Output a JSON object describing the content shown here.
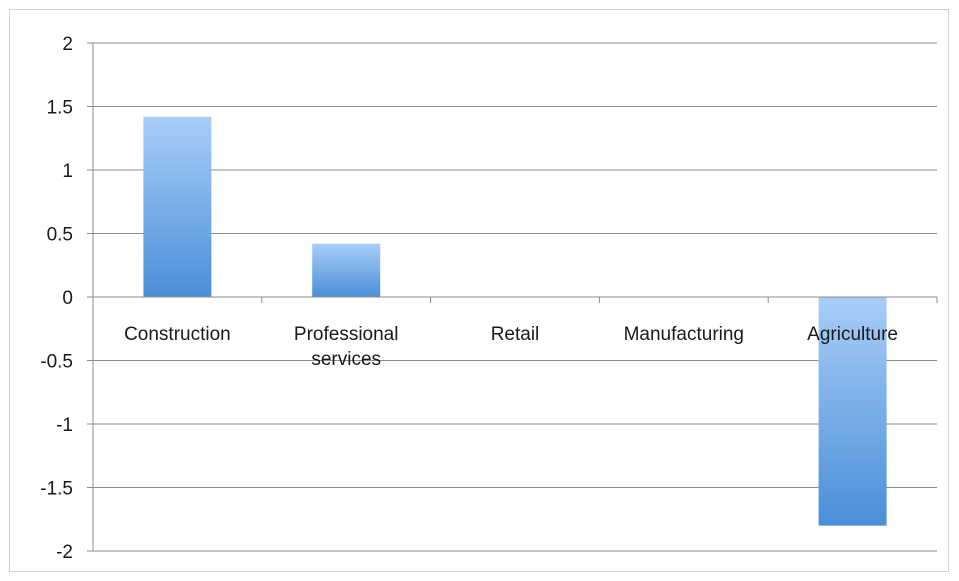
{
  "chart_data": {
    "type": "bar",
    "categories": [
      "Construction",
      [
        "Professional",
        "services"
      ],
      "Retail",
      "Manufacturing",
      "Agriculture"
    ],
    "values": [
      1.42,
      0.42,
      0,
      0,
      -1.8
    ],
    "ylim": [
      -2,
      2
    ],
    "yticks": [
      "2",
      "1.5",
      "1",
      "0.5",
      "0",
      "-0.5",
      "-1",
      "-1.5",
      "-2"
    ],
    "ytick_values": [
      2,
      1.5,
      1,
      0.5,
      0,
      -0.5,
      -1,
      -1.5,
      -2
    ],
    "grid": true,
    "legend": "none",
    "colors": {
      "bar_top": "#a9cdf8",
      "bar_bottom": "#4a8fd8",
      "grid": "#8c8c8c"
    }
  }
}
